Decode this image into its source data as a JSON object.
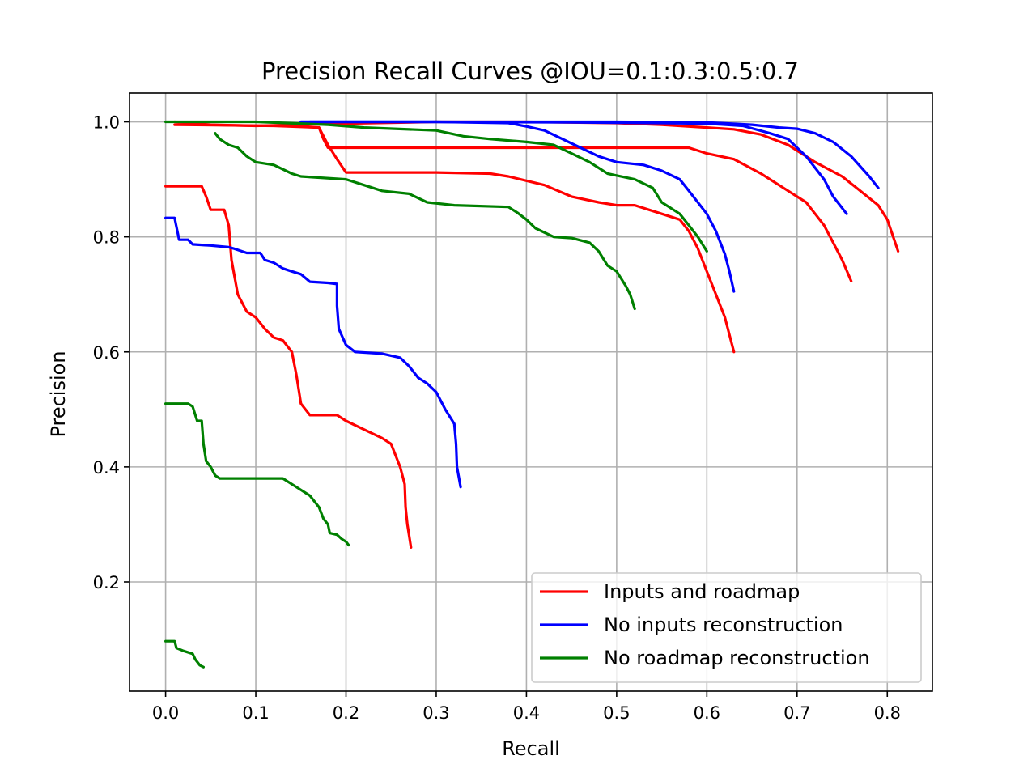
{
  "chart_data": {
    "type": "line",
    "title": "Precision Recall Curves @IOU=0.1:0.3:0.5:0.7",
    "xlabel": "Recall",
    "ylabel": "Precision",
    "xlim": [
      -0.04,
      0.85
    ],
    "ylim": [
      0.01,
      1.05
    ],
    "grid": true,
    "legend_position": "lower-right",
    "x_ticks": [
      0.0,
      0.1,
      0.2,
      0.3,
      0.4,
      0.5,
      0.6,
      0.7,
      0.8
    ],
    "x_tick_labels": [
      "0.0",
      "0.1",
      "0.2",
      "0.3",
      "0.4",
      "0.5",
      "0.6",
      "0.7",
      "0.8"
    ],
    "y_ticks": [
      0.2,
      0.4,
      0.6,
      0.8,
      1.0
    ],
    "y_tick_labels": [
      "0.2",
      "0.4",
      "0.6",
      "0.8",
      "1.0"
    ],
    "legend": [
      {
        "name": "Inputs and roadmap",
        "color": "#ff0000"
      },
      {
        "name": "No inputs reconstruction",
        "color": "#0000ff"
      },
      {
        "name": "No roadmap reconstruction",
        "color": "#008000"
      }
    ],
    "series": [
      {
        "name": "Inputs and roadmap",
        "iou": "0.1",
        "color": "#ff0000",
        "points": [
          [
            0.01,
            1.0
          ],
          [
            0.05,
            0.995
          ],
          [
            0.1,
            0.993
          ],
          [
            0.2,
            0.997
          ],
          [
            0.3,
            1.0
          ],
          [
            0.4,
            1.0
          ],
          [
            0.5,
            0.998
          ],
          [
            0.55,
            0.995
          ],
          [
            0.6,
            0.99
          ],
          [
            0.63,
            0.987
          ],
          [
            0.66,
            0.978
          ],
          [
            0.69,
            0.96
          ],
          [
            0.72,
            0.93
          ],
          [
            0.75,
            0.905
          ],
          [
            0.77,
            0.88
          ],
          [
            0.79,
            0.855
          ],
          [
            0.8,
            0.83
          ],
          [
            0.812,
            0.775
          ]
        ]
      },
      {
        "name": "Inputs and roadmap",
        "iou": "0.3",
        "color": "#ff0000",
        "points": [
          [
            0.01,
            0.995
          ],
          [
            0.12,
            0.993
          ],
          [
            0.17,
            0.99
          ],
          [
            0.175,
            0.97
          ],
          [
            0.18,
            0.955
          ],
          [
            0.3,
            0.955
          ],
          [
            0.5,
            0.955
          ],
          [
            0.58,
            0.955
          ],
          [
            0.6,
            0.945
          ],
          [
            0.63,
            0.935
          ],
          [
            0.66,
            0.91
          ],
          [
            0.69,
            0.88
          ],
          [
            0.71,
            0.86
          ],
          [
            0.72,
            0.84
          ],
          [
            0.73,
            0.82
          ],
          [
            0.74,
            0.79
          ],
          [
            0.75,
            0.76
          ],
          [
            0.76,
            0.723
          ]
        ]
      },
      {
        "name": "Inputs and roadmap",
        "iou": "0.5",
        "color": "#ff0000",
        "points": [
          [
            0.17,
            0.99
          ],
          [
            0.18,
            0.96
          ],
          [
            0.19,
            0.935
          ],
          [
            0.2,
            0.912
          ],
          [
            0.3,
            0.912
          ],
          [
            0.36,
            0.91
          ],
          [
            0.38,
            0.905
          ],
          [
            0.42,
            0.89
          ],
          [
            0.45,
            0.87
          ],
          [
            0.48,
            0.86
          ],
          [
            0.5,
            0.855
          ],
          [
            0.52,
            0.855
          ],
          [
            0.55,
            0.84
          ],
          [
            0.57,
            0.83
          ],
          [
            0.58,
            0.81
          ],
          [
            0.59,
            0.78
          ],
          [
            0.6,
            0.74
          ],
          [
            0.61,
            0.7
          ],
          [
            0.62,
            0.66
          ],
          [
            0.63,
            0.6
          ]
        ]
      },
      {
        "name": "Inputs and roadmap",
        "iou": "0.7",
        "color": "#ff0000",
        "points": [
          [
            0.0,
            0.888
          ],
          [
            0.04,
            0.888
          ],
          [
            0.045,
            0.87
          ],
          [
            0.05,
            0.847
          ],
          [
            0.065,
            0.847
          ],
          [
            0.07,
            0.82
          ],
          [
            0.073,
            0.76
          ],
          [
            0.08,
            0.7
          ],
          [
            0.09,
            0.67
          ],
          [
            0.1,
            0.66
          ],
          [
            0.11,
            0.64
          ],
          [
            0.12,
            0.625
          ],
          [
            0.13,
            0.62
          ],
          [
            0.14,
            0.6
          ],
          [
            0.145,
            0.56
          ],
          [
            0.15,
            0.51
          ],
          [
            0.16,
            0.49
          ],
          [
            0.19,
            0.49
          ],
          [
            0.2,
            0.48
          ],
          [
            0.22,
            0.465
          ],
          [
            0.24,
            0.45
          ],
          [
            0.25,
            0.44
          ],
          [
            0.255,
            0.42
          ],
          [
            0.26,
            0.4
          ],
          [
            0.265,
            0.37
          ],
          [
            0.266,
            0.33
          ],
          [
            0.268,
            0.3
          ],
          [
            0.272,
            0.26
          ]
        ]
      },
      {
        "name": "No inputs reconstruction",
        "iou": "0.1",
        "color": "#0000ff",
        "points": [
          [
            0.15,
            1.0
          ],
          [
            0.3,
            1.0
          ],
          [
            0.5,
            1.0
          ],
          [
            0.6,
            0.999
          ],
          [
            0.65,
            0.995
          ],
          [
            0.68,
            0.99
          ],
          [
            0.7,
            0.988
          ],
          [
            0.72,
            0.98
          ],
          [
            0.74,
            0.965
          ],
          [
            0.76,
            0.94
          ],
          [
            0.78,
            0.905
          ],
          [
            0.79,
            0.885
          ]
        ]
      },
      {
        "name": "No inputs reconstruction",
        "iou": "0.3",
        "color": "#0000ff",
        "points": [
          [
            0.15,
            1.0
          ],
          [
            0.3,
            1.0
          ],
          [
            0.45,
            0.999
          ],
          [
            0.55,
            0.998
          ],
          [
            0.6,
            0.997
          ],
          [
            0.64,
            0.993
          ],
          [
            0.67,
            0.98
          ],
          [
            0.69,
            0.97
          ],
          [
            0.7,
            0.955
          ],
          [
            0.71,
            0.94
          ],
          [
            0.72,
            0.92
          ],
          [
            0.73,
            0.9
          ],
          [
            0.74,
            0.87
          ],
          [
            0.755,
            0.84
          ]
        ]
      },
      {
        "name": "No inputs reconstruction",
        "iou": "0.5",
        "color": "#0000ff",
        "points": [
          [
            0.16,
            1.0
          ],
          [
            0.3,
            1.0
          ],
          [
            0.38,
            0.998
          ],
          [
            0.4,
            0.992
          ],
          [
            0.42,
            0.985
          ],
          [
            0.44,
            0.97
          ],
          [
            0.46,
            0.955
          ],
          [
            0.48,
            0.94
          ],
          [
            0.5,
            0.93
          ],
          [
            0.53,
            0.925
          ],
          [
            0.55,
            0.915
          ],
          [
            0.57,
            0.9
          ],
          [
            0.58,
            0.88
          ],
          [
            0.59,
            0.86
          ],
          [
            0.6,
            0.84
          ],
          [
            0.61,
            0.81
          ],
          [
            0.62,
            0.77
          ],
          [
            0.625,
            0.74
          ],
          [
            0.63,
            0.705
          ]
        ]
      },
      {
        "name": "No inputs reconstruction",
        "iou": "0.7",
        "color": "#0000ff",
        "points": [
          [
            0.0,
            0.833
          ],
          [
            0.01,
            0.833
          ],
          [
            0.015,
            0.795
          ],
          [
            0.025,
            0.795
          ],
          [
            0.03,
            0.787
          ],
          [
            0.05,
            0.785
          ],
          [
            0.07,
            0.782
          ],
          [
            0.075,
            0.78
          ],
          [
            0.09,
            0.772
          ],
          [
            0.105,
            0.772
          ],
          [
            0.11,
            0.76
          ],
          [
            0.12,
            0.755
          ],
          [
            0.13,
            0.745
          ],
          [
            0.14,
            0.74
          ],
          [
            0.15,
            0.735
          ],
          [
            0.16,
            0.722
          ],
          [
            0.18,
            0.72
          ],
          [
            0.19,
            0.718
          ],
          [
            0.19,
            0.68
          ],
          [
            0.192,
            0.64
          ],
          [
            0.2,
            0.612
          ],
          [
            0.21,
            0.6
          ],
          [
            0.24,
            0.597
          ],
          [
            0.26,
            0.59
          ],
          [
            0.27,
            0.575
          ],
          [
            0.28,
            0.555
          ],
          [
            0.29,
            0.545
          ],
          [
            0.3,
            0.53
          ],
          [
            0.31,
            0.5
          ],
          [
            0.32,
            0.475
          ],
          [
            0.322,
            0.44
          ],
          [
            0.323,
            0.4
          ],
          [
            0.327,
            0.365
          ]
        ]
      },
      {
        "name": "No roadmap reconstruction",
        "iou": "0.1",
        "color": "#008000",
        "points": [
          [
            0.0,
            1.0
          ],
          [
            0.1,
            1.0
          ],
          [
            0.18,
            0.995
          ],
          [
            0.22,
            0.99
          ],
          [
            0.3,
            0.985
          ],
          [
            0.33,
            0.975
          ],
          [
            0.36,
            0.97
          ],
          [
            0.4,
            0.965
          ],
          [
            0.43,
            0.96
          ],
          [
            0.45,
            0.945
          ],
          [
            0.47,
            0.93
          ],
          [
            0.49,
            0.91
          ],
          [
            0.52,
            0.9
          ],
          [
            0.54,
            0.885
          ],
          [
            0.55,
            0.86
          ],
          [
            0.57,
            0.84
          ],
          [
            0.58,
            0.82
          ],
          [
            0.59,
            0.8
          ],
          [
            0.6,
            0.775
          ]
        ]
      },
      {
        "name": "No roadmap reconstruction",
        "iou": "0.5",
        "color": "#008000",
        "points": [
          [
            0.055,
            0.98
          ],
          [
            0.06,
            0.97
          ],
          [
            0.07,
            0.96
          ],
          [
            0.08,
            0.955
          ],
          [
            0.09,
            0.94
          ],
          [
            0.1,
            0.93
          ],
          [
            0.12,
            0.925
          ],
          [
            0.14,
            0.91
          ],
          [
            0.15,
            0.905
          ],
          [
            0.2,
            0.9
          ],
          [
            0.22,
            0.89
          ],
          [
            0.24,
            0.88
          ],
          [
            0.27,
            0.875
          ],
          [
            0.29,
            0.86
          ],
          [
            0.32,
            0.855
          ],
          [
            0.38,
            0.852
          ],
          [
            0.39,
            0.842
          ],
          [
            0.4,
            0.83
          ],
          [
            0.41,
            0.815
          ],
          [
            0.43,
            0.8
          ],
          [
            0.45,
            0.798
          ],
          [
            0.47,
            0.79
          ],
          [
            0.48,
            0.775
          ],
          [
            0.49,
            0.75
          ],
          [
            0.5,
            0.74
          ],
          [
            0.51,
            0.715
          ],
          [
            0.515,
            0.7
          ],
          [
            0.52,
            0.675
          ]
        ]
      },
      {
        "name": "No roadmap reconstruction",
        "iou": "0.7a",
        "color": "#008000",
        "points": [
          [
            0.0,
            0.51
          ],
          [
            0.025,
            0.51
          ],
          [
            0.03,
            0.505
          ],
          [
            0.035,
            0.48
          ],
          [
            0.04,
            0.48
          ],
          [
            0.042,
            0.44
          ],
          [
            0.045,
            0.41
          ],
          [
            0.05,
            0.4
          ],
          [
            0.055,
            0.385
          ],
          [
            0.06,
            0.38
          ],
          [
            0.13,
            0.38
          ],
          [
            0.14,
            0.37
          ],
          [
            0.15,
            0.36
          ],
          [
            0.16,
            0.35
          ],
          [
            0.17,
            0.33
          ],
          [
            0.175,
            0.31
          ],
          [
            0.18,
            0.3
          ],
          [
            0.182,
            0.285
          ],
          [
            0.19,
            0.282
          ],
          [
            0.195,
            0.275
          ],
          [
            0.2,
            0.27
          ],
          [
            0.203,
            0.264
          ]
        ]
      },
      {
        "name": "No roadmap reconstruction",
        "iou": "0.7b",
        "color": "#008000",
        "points": [
          [
            0.0,
            0.097
          ],
          [
            0.01,
            0.097
          ],
          [
            0.012,
            0.085
          ],
          [
            0.02,
            0.08
          ],
          [
            0.03,
            0.075
          ],
          [
            0.033,
            0.065
          ],
          [
            0.038,
            0.055
          ],
          [
            0.042,
            0.052
          ]
        ]
      }
    ]
  }
}
